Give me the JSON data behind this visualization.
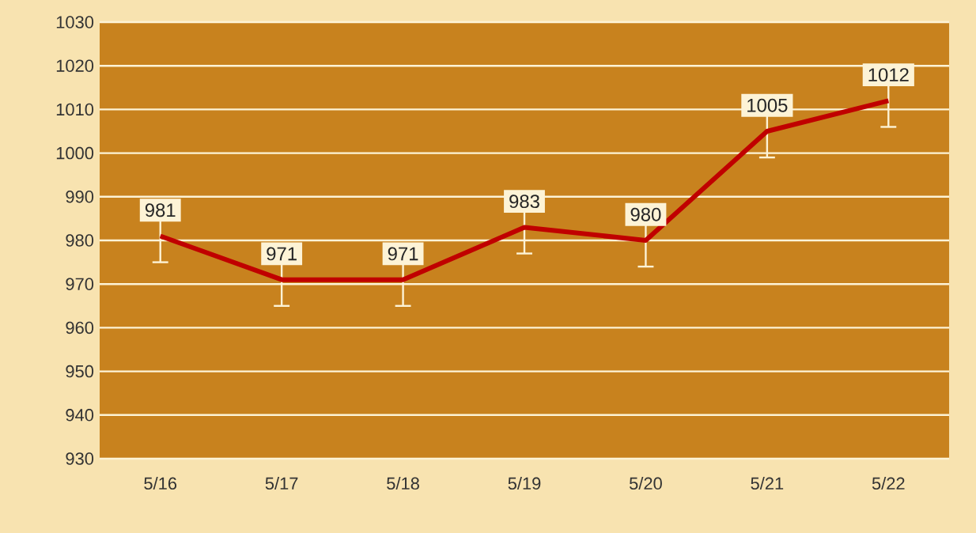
{
  "chart_data": {
    "type": "line",
    "categories": [
      "5/16",
      "5/17",
      "5/18",
      "5/19",
      "5/20",
      "5/21",
      "5/22"
    ],
    "series": [
      {
        "color": "#c00000",
        "values": [
          981,
          971,
          971,
          983,
          980,
          1005,
          1012
        ],
        "errors": [
          6,
          6,
          6,
          6,
          6,
          6,
          6
        ]
      }
    ],
    "ylim": [
      930,
      1030
    ],
    "yticks": [
      930,
      940,
      950,
      960,
      970,
      980,
      990,
      1000,
      1010,
      1020,
      1030
    ],
    "grid": "y",
    "data_labels": true,
    "marker": "none",
    "line_style": "solid"
  }
}
